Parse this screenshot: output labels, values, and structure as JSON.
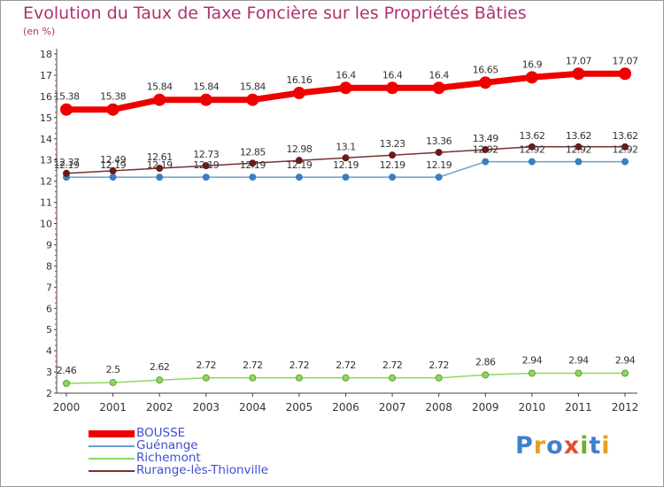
{
  "title": "Evolution du Taux de Taxe Foncière sur les Propriétés Bâties",
  "unit_label": "(en %)",
  "logo": {
    "text": "Proxiti",
    "letters": [
      {
        "ch": "P",
        "color": "#3f7fd0"
      },
      {
        "ch": "r",
        "color": "#e8a020"
      },
      {
        "ch": "o",
        "color": "#3f7fd0"
      },
      {
        "ch": "x",
        "color": "#e05030"
      },
      {
        "ch": "i",
        "color": "#70b030"
      },
      {
        "ch": "t",
        "color": "#3f7fd0"
      },
      {
        "ch": "i",
        "color": "#e8a020"
      }
    ]
  },
  "chart_data": {
    "type": "line",
    "title": "Evolution du Taux de Taxe Foncière sur les Propriétés Bâties",
    "ylabel": "(en %)",
    "xlabel": "",
    "x": [
      "2000",
      "2001",
      "2002",
      "2003",
      "2004",
      "2005",
      "2006",
      "2007",
      "2008",
      "2009",
      "2010",
      "2011",
      "2012"
    ],
    "ylim": [
      2,
      18
    ],
    "yticks": [
      "2",
      "3",
      "4",
      "5",
      "6",
      "7",
      "8",
      "9",
      "10",
      "11",
      "12",
      "13",
      "14",
      "15",
      "16",
      "17",
      "18"
    ],
    "grid": false,
    "legend_position": "bottom-left",
    "series": [
      {
        "name": "BOUSSE",
        "color": "#ee0000",
        "values": [
          15.38,
          15.38,
          15.84,
          15.84,
          15.84,
          16.16,
          16.4,
          16.4,
          16.4,
          16.65,
          16.9,
          17.07,
          17.07
        ],
        "labels": [
          "15.38",
          "15.38",
          "15.84",
          "15.84",
          "15.84",
          "16.16",
          "16.4",
          "16.4",
          "16.4",
          "16.65",
          "16.9",
          "17.07",
          "17.07"
        ]
      },
      {
        "name": "Guénange",
        "color": "#6a9ed0",
        "values": [
          12.19,
          12.19,
          12.19,
          12.19,
          12.19,
          12.19,
          12.19,
          12.19,
          12.19,
          12.92,
          12.92,
          12.92,
          12.92
        ],
        "labels": [
          "12.19",
          "12.19",
          "12.19",
          "12.19",
          "12.19",
          "12.19",
          "12.19",
          "12.19",
          "12.19",
          "12.92",
          "12.92",
          "12.92",
          "12.92"
        ]
      },
      {
        "name": "Richemont",
        "color": "#8fd860",
        "values": [
          2.46,
          2.5,
          2.62,
          2.72,
          2.72,
          2.72,
          2.72,
          2.72,
          2.72,
          2.86,
          2.94,
          2.94,
          2.94
        ],
        "labels": [
          "2.46",
          "2.5",
          "2.62",
          "2.72",
          "2.72",
          "2.72",
          "2.72",
          "2.72",
          "2.72",
          "2.86",
          "2.94",
          "2.94",
          "2.94"
        ]
      },
      {
        "name": "Rurange-lès-Thionville",
        "color": "#7a3030",
        "values": [
          12.37,
          12.49,
          12.61,
          12.73,
          12.85,
          12.98,
          13.1,
          13.23,
          13.36,
          13.49,
          13.62,
          13.62,
          13.62
        ],
        "labels": [
          "12.37",
          "12.49",
          "12.61",
          "12.73",
          "12.85",
          "12.98",
          "13.1",
          "13.23",
          "13.36",
          "13.49",
          "13.62",
          "13.62",
          "13.62"
        ]
      }
    ]
  }
}
